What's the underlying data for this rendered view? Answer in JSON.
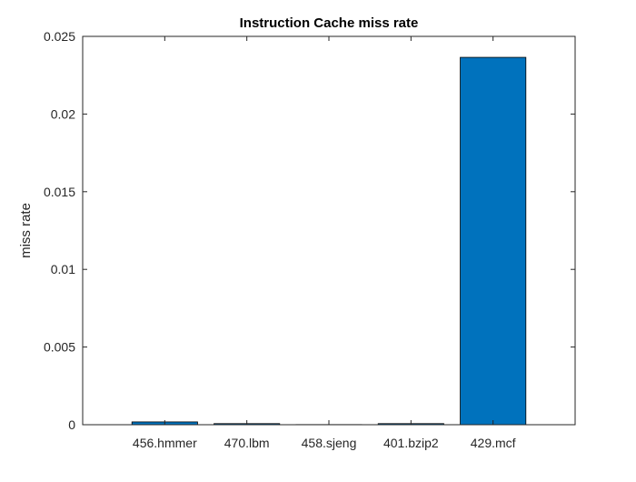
{
  "chart_data": {
    "type": "bar",
    "title": "Instruction Cache miss rate",
    "xlabel": "",
    "ylabel": "miss rate",
    "categories": [
      "456.hmmer",
      "470.lbm",
      "458.sjeng",
      "401.bzip2",
      "429.mcf"
    ],
    "values": [
      0.00018,
      7e-05,
      1e-05,
      7e-05,
      0.02365
    ],
    "ylim": [
      0,
      0.025
    ],
    "yticks": [
      "0",
      "0.005",
      "0.01",
      "0.015",
      "0.02",
      "0.025"
    ],
    "ytick_values": [
      0,
      0.005,
      0.01,
      0.015,
      0.02,
      0.025
    ],
    "xlim": [
      0,
      6
    ],
    "grid": false,
    "legend": "none",
    "bar_color": "#0072BD",
    "bar_edge_color": "#000000",
    "axes_color": "#262626"
  }
}
